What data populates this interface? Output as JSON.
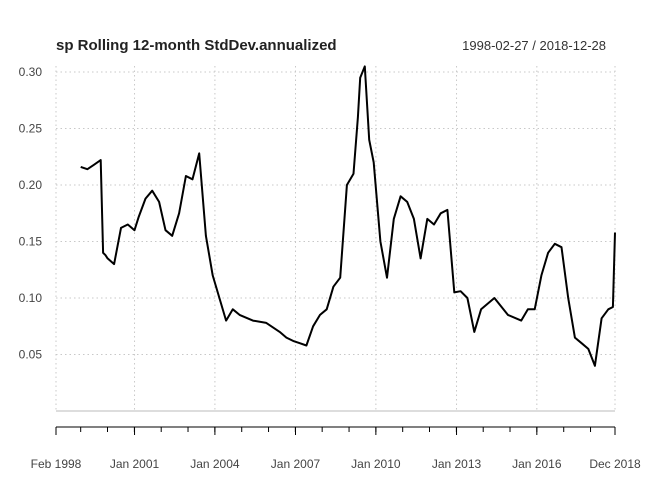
{
  "chart_data": {
    "type": "line",
    "title": "sp Rolling 12-month StdDev.annualized",
    "date_range": "1998-02-27 / 2018-12-28",
    "xlabel": "",
    "ylabel": "",
    "x_range": [
      "1998-02-27",
      "2018-12-28"
    ],
    "ylim": [
      0,
      0.3
    ],
    "grid": true,
    "legend": "none",
    "line_color": "#000000",
    "x_tick_labels": [
      "Feb 1998",
      "Jan 2001",
      "Jan 2004",
      "Jan 2007",
      "Jan 2010",
      "Jan 2013",
      "Jan 2016",
      "Dec 2018"
    ],
    "x_tick_dates": [
      "1998-02-27",
      "2001-01-31",
      "2004-01-30",
      "2007-01-31",
      "2010-01-29",
      "2013-01-31",
      "2016-01-29",
      "2018-12-28"
    ],
    "y_ticks": [
      0.05,
      0.1,
      0.15,
      0.2,
      0.25,
      0.3
    ],
    "y_tick_labels": [
      "0.05",
      "0.10",
      "0.15",
      "0.20",
      "0.25",
      "0.30"
    ],
    "series": [
      {
        "x": [
          "1999-01-29",
          "1999-04-30",
          "1999-07-30",
          "1999-10-29",
          "1999-11-30",
          "1999-12-31",
          "2000-01-31",
          "2000-04-28",
          "2000-07-31",
          "2000-10-31",
          "2001-01-31",
          "2001-03-30",
          "2001-06-29",
          "2001-09-28",
          "2001-12-31",
          "2002-03-28",
          "2002-06-28",
          "2002-09-30",
          "2002-12-31",
          "2003-03-31",
          "2003-06-30",
          "2003-09-30",
          "2003-12-31",
          "2004-03-31",
          "2004-06-30",
          "2004-09-30",
          "2004-12-31",
          "2005-06-30",
          "2005-12-30",
          "2006-06-30",
          "2006-09-29",
          "2006-12-29",
          "2007-03-30",
          "2007-06-29",
          "2007-09-28",
          "2007-12-31",
          "2008-03-31",
          "2008-06-30",
          "2008-09-30",
          "2008-12-31",
          "2009-03-31",
          "2009-05-29",
          "2009-06-30",
          "2009-08-31",
          "2009-10-30",
          "2009-12-31",
          "2010-03-31",
          "2010-06-30",
          "2010-09-30",
          "2010-12-31",
          "2011-03-31",
          "2011-06-30",
          "2011-09-30",
          "2011-12-30",
          "2012-03-30",
          "2012-06-29",
          "2012-09-28",
          "2012-12-31",
          "2013-03-28",
          "2013-06-28",
          "2013-09-30",
          "2013-12-31",
          "2014-06-30",
          "2014-12-31",
          "2015-06-30",
          "2015-09-30",
          "2015-12-31",
          "2016-03-31",
          "2016-06-30",
          "2016-09-30",
          "2016-12-30",
          "2017-03-31",
          "2017-06-30",
          "2017-09-29",
          "2017-12-29",
          "2018-03-30",
          "2018-06-29",
          "2018-09-28",
          "2018-11-30",
          "2018-12-28"
        ],
        "values": [
          0.216,
          0.214,
          0.218,
          0.222,
          0.14,
          0.138,
          0.135,
          0.13,
          0.162,
          0.165,
          0.16,
          0.172,
          0.188,
          0.195,
          0.185,
          0.16,
          0.155,
          0.175,
          0.208,
          0.205,
          0.228,
          0.155,
          0.12,
          0.1,
          0.08,
          0.09,
          0.085,
          0.08,
          0.078,
          0.07,
          0.065,
          0.062,
          0.06,
          0.058,
          0.075,
          0.085,
          0.09,
          0.11,
          0.118,
          0.2,
          0.21,
          0.26,
          0.295,
          0.305,
          0.24,
          0.22,
          0.15,
          0.118,
          0.17,
          0.19,
          0.185,
          0.17,
          0.135,
          0.17,
          0.165,
          0.175,
          0.178,
          0.105,
          0.106,
          0.1,
          0.07,
          0.09,
          0.1,
          0.085,
          0.08,
          0.09,
          0.09,
          0.12,
          0.14,
          0.148,
          0.145,
          0.1,
          0.065,
          0.06,
          0.055,
          0.04,
          0.082,
          0.09,
          0.092,
          0.158
        ]
      }
    ]
  }
}
